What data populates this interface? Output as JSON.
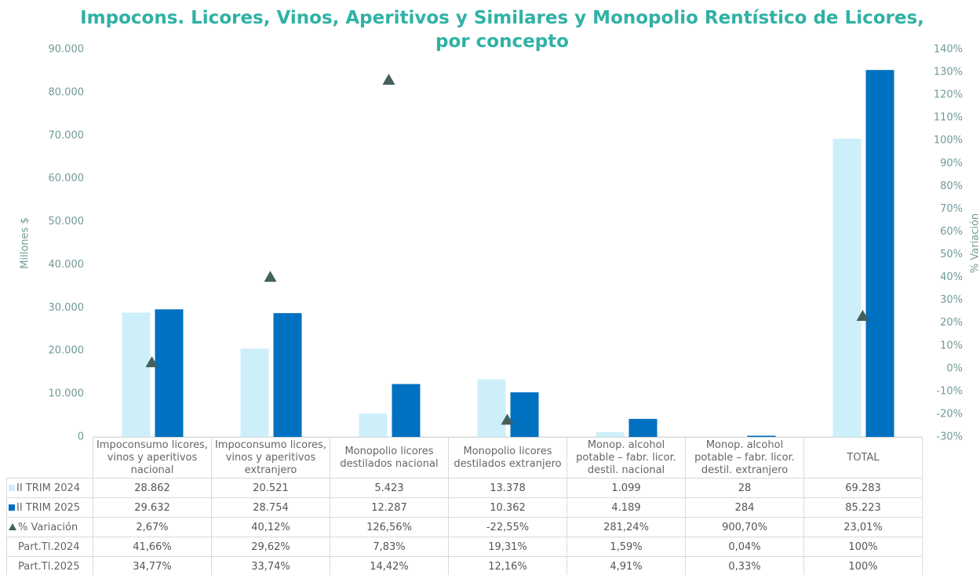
{
  "chart_data": {
    "type": "bar",
    "title": "Impocons. Licores, Vinos, Aperitivos y Similares y Monopolio Rentístico de Licores, por concepto",
    "y_label": "Millones $",
    "y2_label": "% Variación",
    "categories": [
      "Impoconsumo licores, vinos y aperitivos nacional",
      "Impoconsumo licores, vinos y aperitivos extranjero",
      "Monopolio licores destilados nacional",
      "Monopolio licores destilados extranjero",
      "Monop. alcohol potable – fabr. licor. destil. nacional",
      "Monop. alcohol potable – fabr. licor. destil. extranjero",
      "TOTAL"
    ],
    "series": [
      {
        "name": "II TRIM 2024",
        "color": "#cdeffa",
        "values": [
          28862,
          20521,
          5423,
          13378,
          1099,
          28,
          69283
        ],
        "value_labels": [
          "28.862",
          "20.521",
          "5.423",
          "13.378",
          "1.099",
          "28",
          "69.283"
        ]
      },
      {
        "name": "II TRIM 2025",
        "color": "#0070c0",
        "values": [
          29632,
          28754,
          12287,
          10362,
          4189,
          284,
          85223
        ],
        "value_labels": [
          "29.632",
          "28.754",
          "12.287",
          "10.362",
          "4.189",
          "284",
          "85.223"
        ]
      },
      {
        "name": "% Variación",
        "color": "#44605c",
        "axis": "y2",
        "marker": "triangle",
        "values": [
          2.67,
          40.12,
          126.56,
          -22.55,
          281.24,
          900.7,
          23.01
        ],
        "value_labels": [
          "2,67%",
          "40,12%",
          "126,56%",
          "-22,55%",
          "281,24%",
          "900,70%",
          "23,01%"
        ]
      }
    ],
    "table_rows": [
      {
        "name": "Part.Tl.2024",
        "cells": [
          "41,66%",
          "29,62%",
          "7,83%",
          "19,31%",
          "1,59%",
          "0,04%",
          "100%"
        ]
      },
      {
        "name": "Part.Tl.2025",
        "cells": [
          "34,77%",
          "33,74%",
          "14,42%",
          "12,16%",
          "4,91%",
          "0,33%",
          "100%"
        ]
      }
    ],
    "ylim": [
      0,
      90000
    ],
    "yticks": [
      0,
      {
        "value": 10000,
        "label": "10.000"
      },
      {
        "value": 20000,
        "label": "20.000"
      },
      {
        "value": 30000,
        "label": "30.000"
      },
      {
        "value": 40000,
        "label": "40.000"
      },
      {
        "value": 50000,
        "label": "50.000"
      },
      {
        "value": 60000,
        "label": "60.000"
      },
      {
        "value": 70000,
        "label": "70.000"
      },
      {
        "value": 80000,
        "label": "80.000"
      },
      {
        "value": 90000,
        "label": "90.000"
      }
    ],
    "y2lim": [
      -30,
      140
    ],
    "y2ticks": [
      {
        "value": -30,
        "label": "-30%"
      },
      {
        "value": -20,
        "label": "-20%"
      },
      {
        "value": -10,
        "label": "-10%"
      },
      {
        "value": 0,
        "label": "0%"
      },
      {
        "value": 10,
        "label": "10%"
      },
      {
        "value": 20,
        "label": "20%"
      },
      {
        "value": 30,
        "label": "30%"
      },
      {
        "value": 40,
        "label": "40%"
      },
      {
        "value": 50,
        "label": "50%"
      },
      {
        "value": 60,
        "label": "60%"
      },
      {
        "value": 70,
        "label": "70%"
      },
      {
        "value": 80,
        "label": "80%"
      },
      {
        "value": 90,
        "label": "90%"
      },
      {
        "value": 100,
        "label": "100%"
      },
      {
        "value": 110,
        "label": "110%"
      },
      {
        "value": 120,
        "label": "120%"
      },
      {
        "value": 130,
        "label": "130%"
      },
      {
        "value": 140,
        "label": "140%"
      }
    ],
    "grid": false
  }
}
